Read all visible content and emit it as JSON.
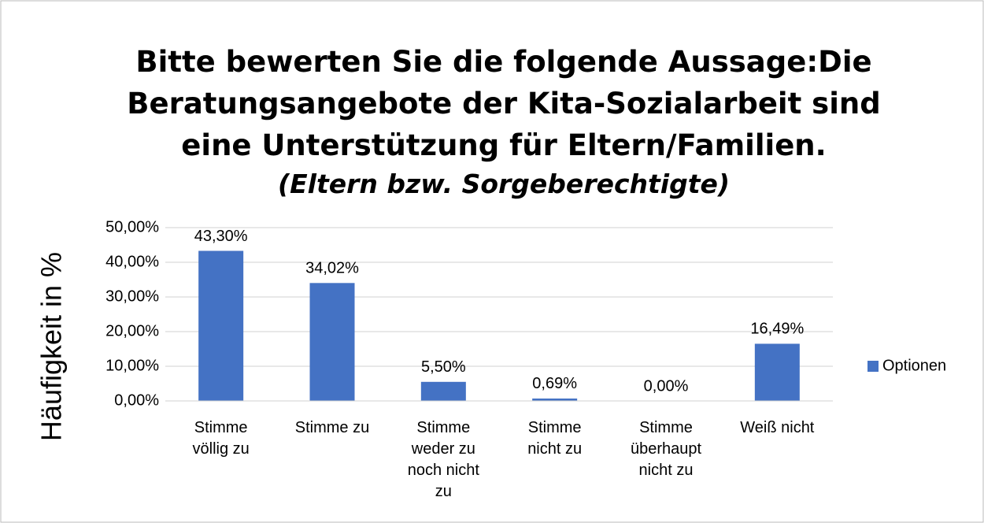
{
  "chart_data": {
    "type": "bar",
    "title": "Bitte bewerten Sie die folgende Aussage:Die Beratungsangebote der Kita-Sozialarbeit sind eine Unterstützung für Eltern/Familien.",
    "subtitle": "(Eltern bzw. Sorgeberechtigte)",
    "y_label": "Häufigkeit in %",
    "categories": [
      "Stimme völlig zu",
      "Stimme zu",
      "Stimme weder zu noch nicht zu",
      "Stimme nicht zu",
      "Stimme überhaupt nicht zu",
      "Weiß nicht"
    ],
    "series": [
      {
        "name": "Optionen",
        "color": "#4472c4",
        "values": [
          43.3,
          34.02,
          5.5,
          0.69,
          0.0,
          16.49
        ],
        "value_labels": [
          "43,30%",
          "34,02%",
          "5,50%",
          "0,69%",
          "0,00%",
          "16,49%"
        ]
      }
    ],
    "ylim": [
      0,
      50
    ],
    "yticks": [
      {
        "value": 0,
        "label": "0,00%"
      },
      {
        "value": 10,
        "label": "10,00%"
      },
      {
        "value": 20,
        "label": "20,00%"
      },
      {
        "value": 30,
        "label": "30,00%"
      },
      {
        "value": 40,
        "label": "40,00%"
      },
      {
        "value": 50,
        "label": "50,00%"
      }
    ],
    "grid": true,
    "legend": "right"
  }
}
